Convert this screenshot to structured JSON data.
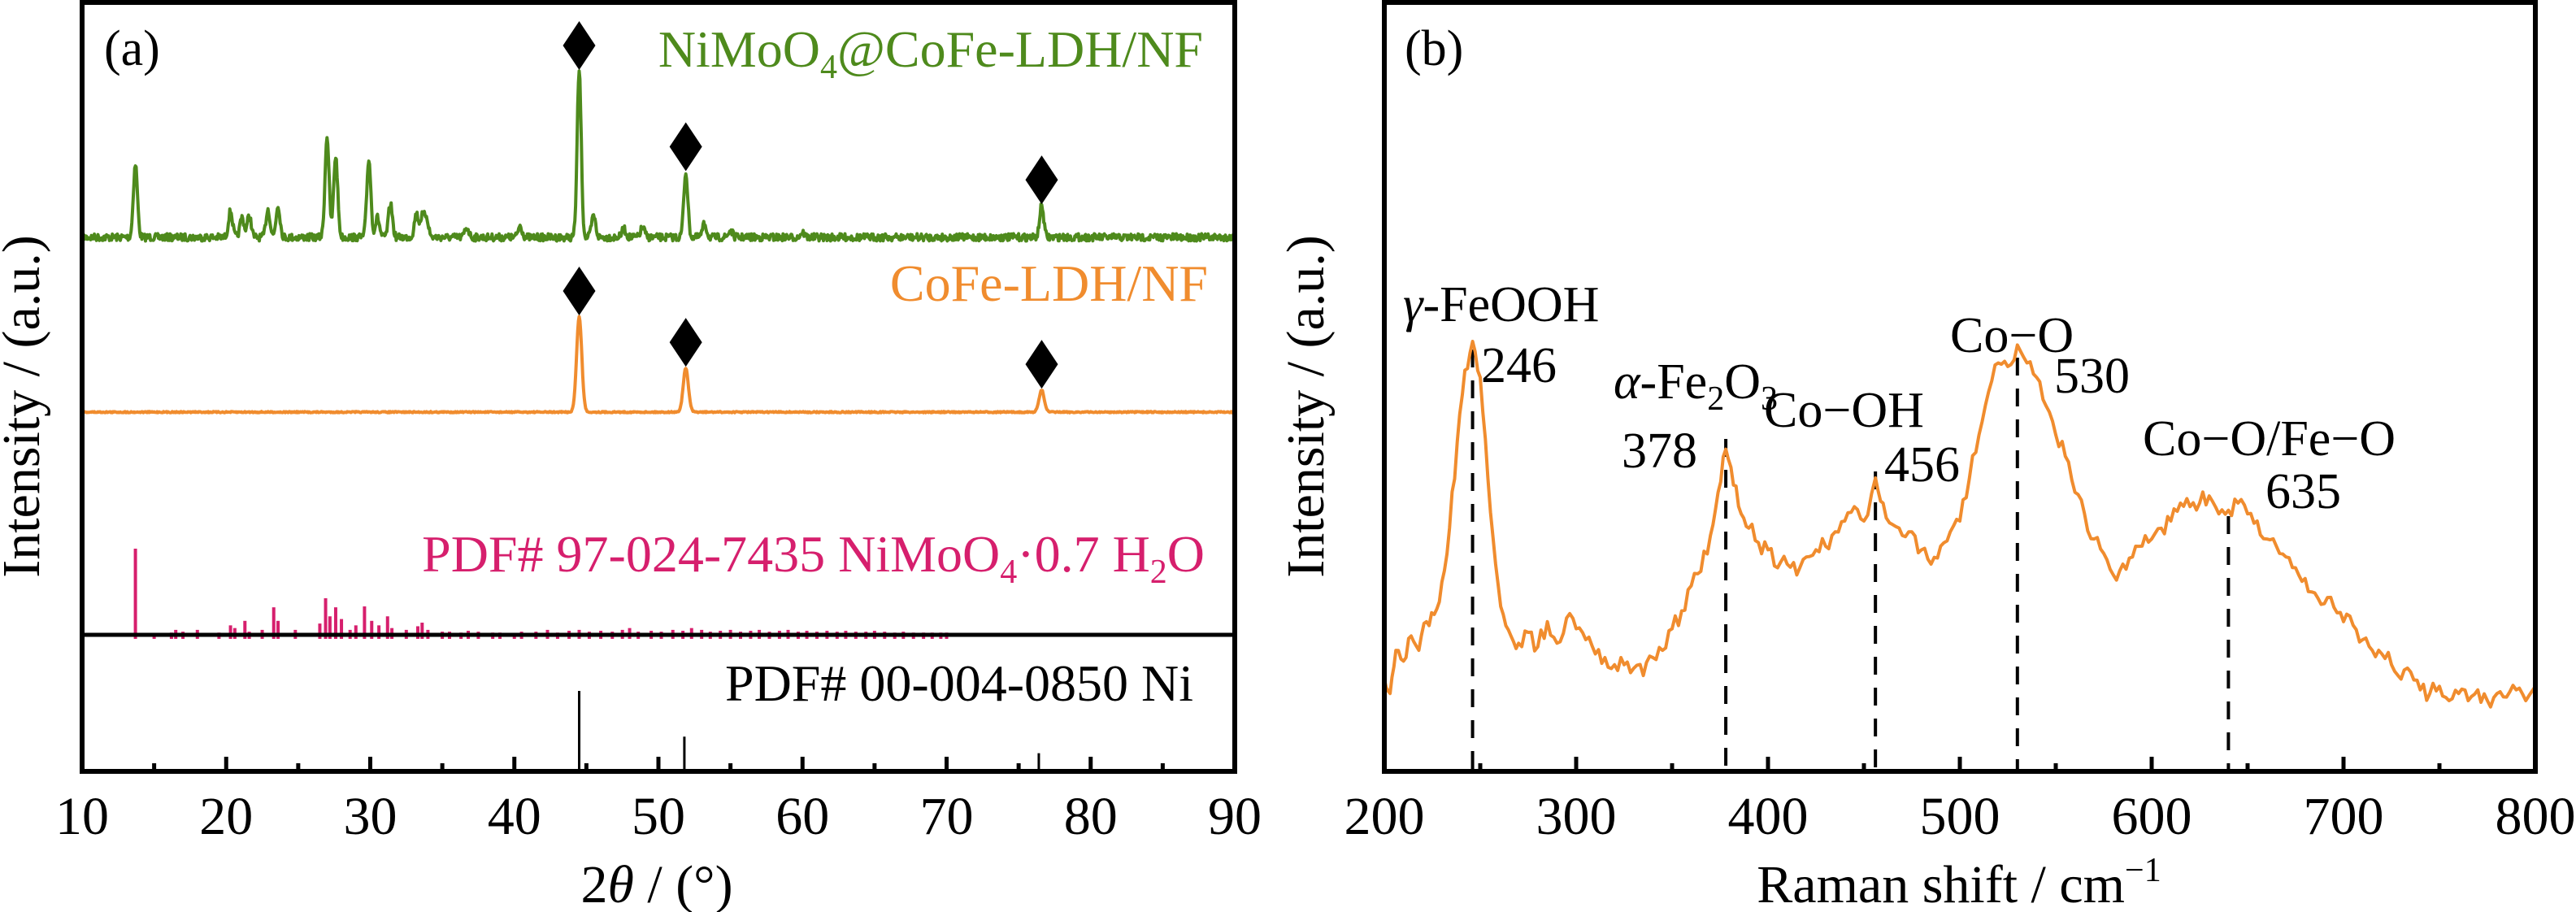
{
  "figure": {
    "panels": [
      "(a)",
      "(b)"
    ]
  },
  "colors": {
    "green": "#4e8a1c",
    "orange": "#f08c2e",
    "pink": "#d61f6d",
    "black": "#000000"
  },
  "chart_data": [
    {
      "panel": "(a)",
      "type": "line",
      "title": "",
      "xlabel_prefix": "2",
      "xlabel_symbol": "θ",
      "xlabel_suffix": " / (°)",
      "ylabel": "Intensity / (a.u.)",
      "xlim": [
        10,
        90
      ],
      "xticks": [
        10,
        20,
        30,
        40,
        50,
        60,
        70,
        80,
        90
      ],
      "xtick_labels": [
        "10",
        "20",
        "30",
        "40",
        "50",
        "60",
        "70",
        "80",
        "90"
      ],
      "minor_xticks": [
        15,
        25,
        35,
        45,
        55,
        65,
        75,
        85
      ],
      "grid": false,
      "legend": "inline labels, right-aligned above each trace",
      "series": [
        {
          "name": "NiMoO4@CoFe-LDH/NF",
          "label_parts": [
            "NiMoO",
            "4",
            "@CoFe-LDH/NF"
          ],
          "color_key": "green",
          "offset_level": 3,
          "peaks_2theta_rel_intensity": [
            [
              13.7,
              0.44
            ],
            [
              20.3,
              0.16
            ],
            [
              21.1,
              0.12
            ],
            [
              21.6,
              0.13
            ],
            [
              22.9,
              0.17
            ],
            [
              23.6,
              0.19
            ],
            [
              27.0,
              0.61
            ],
            [
              27.6,
              0.49
            ],
            [
              29.9,
              0.47
            ],
            [
              30.5,
              0.12
            ],
            [
              31.4,
              0.2
            ],
            [
              33.2,
              0.14
            ],
            [
              33.6,
              0.12
            ],
            [
              33.9,
              0.12
            ],
            [
              36.7,
              0.06
            ],
            [
              40.4,
              0.07
            ],
            [
              44.5,
              1.0
            ],
            [
              45.5,
              0.13
            ],
            [
              47.6,
              0.05
            ],
            [
              48.9,
              0.06
            ],
            [
              51.9,
              0.39
            ],
            [
              53.2,
              0.08
            ],
            [
              55.0,
              0.04
            ],
            [
              60.0,
              0.03
            ],
            [
              76.6,
              0.19
            ]
          ],
          "markers_at": [
            44.5,
            51.9,
            76.6
          ],
          "marker": "filled-diamond"
        },
        {
          "name": "CoFe-LDH/NF",
          "label_parts": [
            "CoFe-LDH/NF"
          ],
          "color_key": "orange",
          "offset_level": 2,
          "peaks_2theta_rel_intensity": [
            [
              44.5,
              1.0
            ],
            [
              51.9,
              0.46
            ],
            [
              76.6,
              0.23
            ]
          ],
          "markers_at": [
            44.5,
            51.9,
            76.6
          ],
          "marker": "filled-diamond"
        },
        {
          "name": "PDF# 97-024-7435 NiMoO4·0.7 H2O",
          "label_parts": [
            "PDF# 97-024-7435 NiMoO",
            "4",
            "·0.7 H",
            "2",
            "O"
          ],
          "color_key": "pink",
          "type": "stick",
          "offset_level": 1,
          "sticks_2theta_rel_intensity": [
            [
              13.7,
              1.0
            ],
            [
              15.0,
              0.06
            ],
            [
              16.2,
              0.07
            ],
            [
              16.5,
              0.1
            ],
            [
              17.0,
              0.08
            ],
            [
              18.0,
              0.1
            ],
            [
              19.5,
              0.07
            ],
            [
              20.3,
              0.15
            ],
            [
              20.6,
              0.12
            ],
            [
              21.3,
              0.2
            ],
            [
              21.6,
              0.08
            ],
            [
              22.5,
              0.1
            ],
            [
              23.3,
              0.35
            ],
            [
              23.6,
              0.2
            ],
            [
              24.8,
              0.1
            ],
            [
              26.5,
              0.17
            ],
            [
              26.9,
              0.45
            ],
            [
              27.2,
              0.25
            ],
            [
              27.6,
              0.35
            ],
            [
              28.0,
              0.22
            ],
            [
              28.6,
              0.1
            ],
            [
              29.0,
              0.15
            ],
            [
              29.6,
              0.36
            ],
            [
              30.1,
              0.2
            ],
            [
              30.6,
              0.15
            ],
            [
              31.2,
              0.25
            ],
            [
              31.5,
              0.12
            ],
            [
              32.5,
              0.1
            ],
            [
              33.3,
              0.14
            ],
            [
              33.6,
              0.18
            ],
            [
              34.0,
              0.1
            ],
            [
              35.0,
              0.08
            ],
            [
              35.5,
              0.08
            ],
            [
              36.3,
              0.07
            ],
            [
              36.8,
              0.09
            ],
            [
              37.5,
              0.08
            ],
            [
              38.5,
              0.07
            ],
            [
              39.0,
              0.07
            ],
            [
              40.0,
              0.06
            ],
            [
              40.5,
              0.08
            ],
            [
              41.5,
              0.08
            ],
            [
              42.3,
              0.1
            ],
            [
              43.0,
              0.07
            ],
            [
              43.8,
              0.09
            ],
            [
              44.5,
              0.1
            ],
            [
              45.2,
              0.08
            ],
            [
              46.0,
              0.09
            ],
            [
              46.8,
              0.08
            ],
            [
              47.5,
              0.1
            ],
            [
              48.0,
              0.12
            ],
            [
              48.6,
              0.08
            ],
            [
              49.5,
              0.09
            ],
            [
              50.2,
              0.08
            ],
            [
              51.0,
              0.1
            ],
            [
              51.7,
              0.09
            ],
            [
              52.3,
              0.12
            ],
            [
              53.0,
              0.1
            ],
            [
              53.6,
              0.08
            ],
            [
              54.3,
              0.09
            ],
            [
              55.0,
              0.1
            ],
            [
              55.7,
              0.08
            ],
            [
              56.4,
              0.09
            ],
            [
              57.0,
              0.1
            ],
            [
              57.7,
              0.08
            ],
            [
              58.4,
              0.09
            ],
            [
              59.0,
              0.1
            ],
            [
              59.7,
              0.08
            ],
            [
              60.3,
              0.09
            ],
            [
              61.0,
              0.08
            ],
            [
              61.7,
              0.09
            ],
            [
              62.4,
              0.08
            ],
            [
              63.0,
              0.09
            ],
            [
              63.7,
              0.08
            ],
            [
              64.4,
              0.08
            ],
            [
              65.0,
              0.09
            ],
            [
              65.7,
              0.08
            ],
            [
              66.4,
              0.07
            ],
            [
              67.0,
              0.08
            ],
            [
              67.7,
              0.07
            ],
            [
              68.4,
              0.07
            ],
            [
              69.0,
              0.07
            ],
            [
              69.6,
              0.07
            ],
            [
              70.0,
              0.07
            ]
          ]
        },
        {
          "name": "PDF# 00-004-0850 Ni",
          "label_parts": [
            "PDF# 00-004-0850 Ni"
          ],
          "color_key": "black",
          "type": "stick",
          "offset_level": 0,
          "sticks_2theta_rel_intensity": [
            [
              44.5,
              1.0
            ],
            [
              51.8,
              0.42
            ],
            [
              76.4,
              0.21
            ]
          ]
        }
      ]
    },
    {
      "panel": "(b)",
      "type": "line",
      "title": "",
      "xlabel": "Raman shift / cm",
      "xlabel_sup": "−1",
      "ylabel": "Intensity / (a.u.)",
      "xlim": [
        200,
        800
      ],
      "xticks": [
        200,
        300,
        400,
        500,
        600,
        700,
        800
      ],
      "xtick_labels": [
        "200",
        "300",
        "400",
        "500",
        "600",
        "700",
        "800"
      ],
      "minor_xticks": [
        250,
        350,
        450,
        550,
        650,
        750
      ],
      "grid": false,
      "ylim": [
        0,
        1
      ],
      "series": [
        {
          "name": "Raman spectrum",
          "color_key": "orange",
          "x": [
            200,
            203,
            206,
            210,
            214,
            218,
            222,
            226,
            230,
            234,
            238,
            242,
            246,
            250,
            254,
            258,
            262,
            266,
            270,
            275,
            280,
            285,
            290,
            295,
            300,
            305,
            310,
            315,
            320,
            325,
            330,
            335,
            340,
            345,
            350,
            355,
            360,
            365,
            370,
            374,
            378,
            382,
            386,
            390,
            395,
            400,
            405,
            410,
            415,
            420,
            425,
            430,
            435,
            440,
            445,
            450,
            456,
            460,
            465,
            470,
            475,
            480,
            485,
            490,
            495,
            500,
            505,
            510,
            515,
            520,
            525,
            530,
            535,
            540,
            545,
            550,
            555,
            560,
            565,
            570,
            575,
            580,
            585,
            590,
            595,
            600,
            605,
            610,
            615,
            620,
            625,
            630,
            635,
            640,
            645,
            650,
            655,
            660,
            665,
            670,
            675,
            680,
            685,
            690,
            695,
            700,
            705,
            710,
            715,
            720,
            725,
            730,
            735,
            740,
            745,
            750,
            755,
            760,
            765,
            770,
            775,
            780,
            785,
            790,
            795,
            800
          ],
          "y": [
            0.06,
            0.02,
            0.14,
            0.11,
            0.18,
            0.14,
            0.22,
            0.24,
            0.33,
            0.48,
            0.72,
            0.92,
            1.0,
            0.9,
            0.62,
            0.38,
            0.24,
            0.18,
            0.16,
            0.19,
            0.15,
            0.22,
            0.16,
            0.23,
            0.2,
            0.17,
            0.13,
            0.12,
            0.1,
            0.1,
            0.09,
            0.07,
            0.12,
            0.14,
            0.2,
            0.25,
            0.32,
            0.36,
            0.46,
            0.58,
            0.7,
            0.6,
            0.52,
            0.48,
            0.44,
            0.42,
            0.37,
            0.38,
            0.35,
            0.4,
            0.42,
            0.43,
            0.47,
            0.5,
            0.54,
            0.5,
            0.62,
            0.55,
            0.49,
            0.46,
            0.47,
            0.42,
            0.38,
            0.43,
            0.47,
            0.5,
            0.62,
            0.74,
            0.86,
            0.94,
            0.93,
            0.99,
            0.94,
            0.9,
            0.82,
            0.74,
            0.68,
            0.58,
            0.52,
            0.45,
            0.41,
            0.35,
            0.38,
            0.4,
            0.43,
            0.45,
            0.48,
            0.5,
            0.55,
            0.54,
            0.55,
            0.57,
            0.52,
            0.53,
            0.55,
            0.52,
            0.5,
            0.45,
            0.43,
            0.4,
            0.37,
            0.34,
            0.3,
            0.27,
            0.26,
            0.22,
            0.21,
            0.17,
            0.14,
            0.13,
            0.1,
            0.06,
            0.08,
            0.03,
            0.02,
            0.04,
            0.0,
            0.02,
            0.0,
            0.03,
            0.0,
            0.02,
            0.01,
            0.03,
            0.0,
            0.04
          ]
        }
      ],
      "annotations": [
        {
          "label_parts": [
            [
              "γ",
              "italic"
            ],
            [
              "-FeOOH",
              ""
            ]
          ],
          "value": "246",
          "x": 246
        },
        {
          "label_parts": [
            [
              "α",
              "italic"
            ],
            [
              "-Fe",
              ""
            ],
            [
              "2",
              "sub"
            ],
            [
              "O",
              ""
            ],
            [
              "3",
              "sub"
            ]
          ],
          "value": "378",
          "x": 378
        },
        {
          "label_parts": [
            [
              "Co−OH",
              ""
            ]
          ],
          "value": "456",
          "x": 456
        },
        {
          "label_parts": [
            [
              "Co−O",
              ""
            ]
          ],
          "value": "530",
          "x": 530
        },
        {
          "label_parts": [
            [
              "Co−O/Fe−O",
              ""
            ]
          ],
          "value": "635",
          "x": 640
        }
      ]
    }
  ]
}
